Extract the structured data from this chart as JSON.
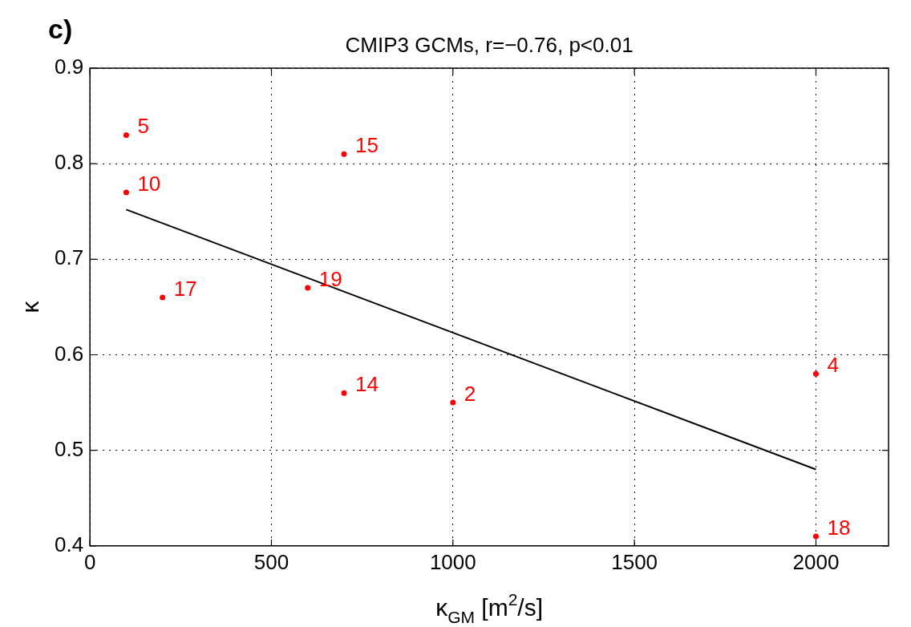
{
  "chart_data": {
    "type": "scatter",
    "title": "CMIP3 GCMs, r=−0.76, p<0.01",
    "xlabel": "κ$_{GM}$ [m$^{2}$/s]",
    "ylabel": "κ",
    "series": [
      {
        "color": "#ff0000",
        "marker": "circle",
        "x": [
          100,
          100,
          700,
          200,
          600,
          700,
          1000,
          2000,
          2000
        ],
        "values": [
          0.83,
          0.77,
          0.81,
          0.66,
          0.67,
          0.56,
          0.55,
          0.58,
          0.41
        ]
      },
      {
        "type": "line",
        "color": "#000000",
        "marker": "none",
        "line_style": "solid",
        "x": [
          100,
          2000
        ],
        "values": [
          0.752,
          0.48
        ]
      }
    ],
    "xlim": [
      0,
      2200
    ],
    "xticks": [
      0,
      500,
      1000,
      1500,
      2000
    ],
    "ylim": [
      0.4,
      0.9
    ],
    "yticks": [
      0.4,
      0.5,
      0.6,
      0.7,
      0.8,
      0.9
    ],
    "grid": true,
    "legend": false,
    "annotations": [
      "c)",
      {
        "text": "5",
        "x": 100,
        "y": 0.83
      },
      {
        "text": "10",
        "x": 100,
        "y": 0.77
      },
      {
        "text": "15",
        "x": 700,
        "y": 0.81
      },
      {
        "text": "17",
        "x": 200,
        "y": 0.66
      },
      {
        "text": "19",
        "x": 600,
        "y": 0.67
      },
      {
        "text": "14",
        "x": 700,
        "y": 0.56
      },
      {
        "text": "2",
        "x": 1000,
        "y": 0.55
      },
      {
        "text": "4",
        "x": 2000,
        "y": 0.58
      },
      {
        "text": "18",
        "x": 2000,
        "y": 0.41
      }
    ]
  }
}
